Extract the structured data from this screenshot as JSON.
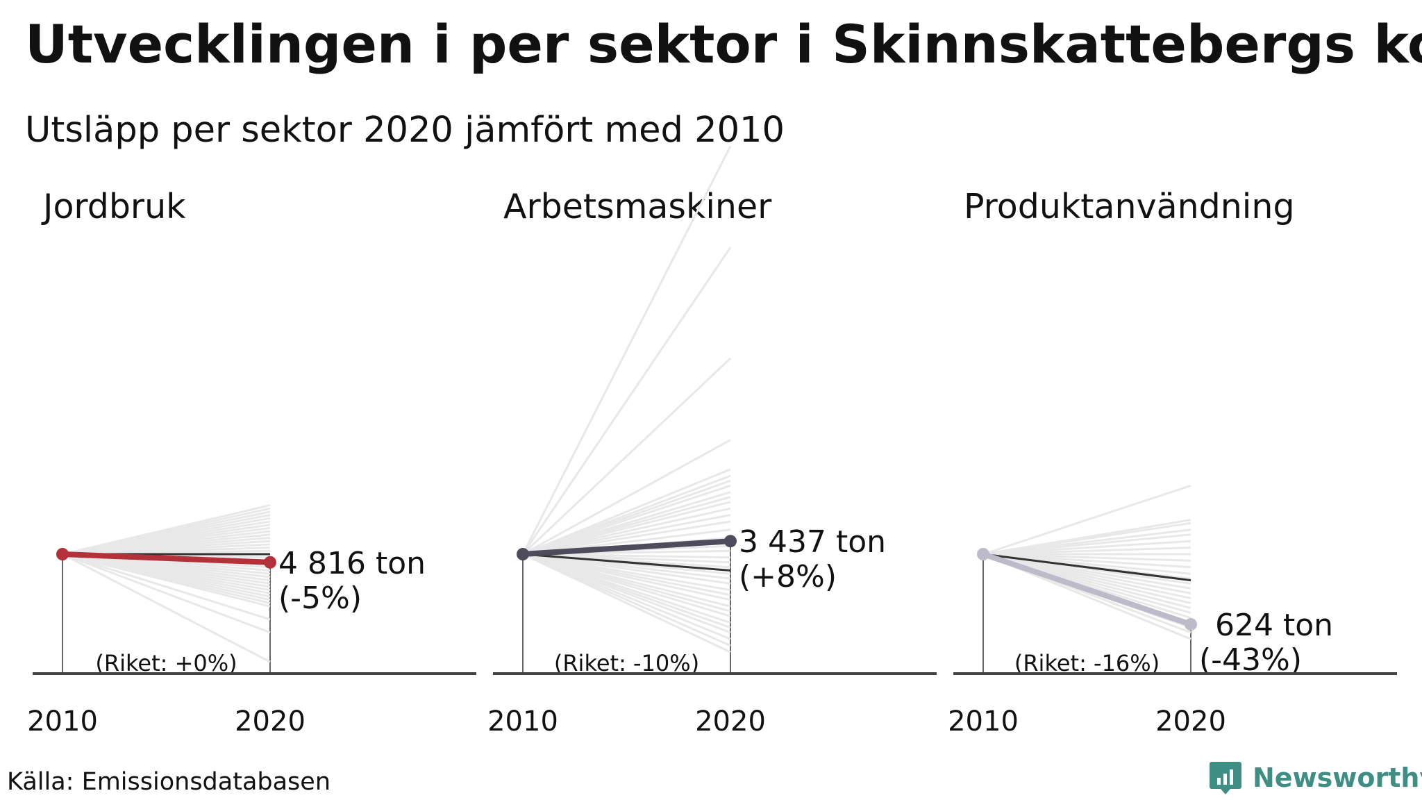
{
  "title": "Utvecklingen i per sektor i Skinnskattebergs kommun",
  "subtitle": "Utsläpp per sektor 2020 jämfört med 2010",
  "source": "Källa: Emissionsdatabasen",
  "brand": {
    "name": "Newsworthy",
    "color": "#3f8e84",
    "icon": "newsworthy-logo-icon"
  },
  "colors": {
    "background_lines": "#e8e8e8",
    "national_line": "#333333",
    "axis": "#333333",
    "baseline": "#444444"
  },
  "chart_data": [
    {
      "type": "line",
      "title": "Jordbruk",
      "x": [
        "2010",
        "2020"
      ],
      "series_color": "#b5313a",
      "municipality": {
        "value_2020": 4816,
        "change_pct": -5,
        "label_value": "4 816 ton",
        "label_change": "(-5%)"
      },
      "national": {
        "change_pct": 0,
        "label": "(Riket: +0%)"
      },
      "other_municipalities_change_pct": [
        30,
        28,
        26,
        24,
        22,
        20,
        18,
        16,
        14,
        12,
        10,
        8,
        6,
        4,
        2,
        -2,
        -4,
        -6,
        -8,
        -10,
        -12,
        -14,
        -16,
        -18,
        -20,
        -22,
        -24,
        -26,
        -28,
        -30,
        -32,
        -40,
        -48,
        -66
      ]
    },
    {
      "type": "line",
      "title": "Arbetsmaskiner",
      "x": [
        "2010",
        "2020"
      ],
      "series_color": "#4d4b5c",
      "municipality": {
        "value_2020": 3437,
        "change_pct": 8,
        "label_value": "3 437 ton",
        "label_change": "(+8%)"
      },
      "national": {
        "change_pct": -10,
        "label": "(Riket: -10%)"
      },
      "other_municipalities_change_pct": [
        250,
        188,
        120,
        70,
        52,
        48,
        45,
        42,
        38,
        35,
        32,
        28,
        24,
        20,
        15,
        10,
        5,
        2,
        -2,
        -5,
        -8,
        -12,
        -15,
        -18,
        -22,
        -25,
        -28,
        -32,
        -35,
        -38,
        -42,
        -45,
        -48,
        -52,
        -56,
        -60
      ]
    },
    {
      "type": "line",
      "title": "Produktanvändning",
      "x": [
        "2010",
        "2020"
      ],
      "series_color": "#bdbbc9",
      "municipality": {
        "value_2020": 624,
        "change_pct": -43,
        "label_value": "624 ton",
        "label_change": "(-43%)"
      },
      "national": {
        "change_pct": -16,
        "label": "(Riket: -16%)"
      },
      "other_municipalities_change_pct": [
        42,
        21,
        19,
        15,
        12,
        8,
        4,
        0,
        -4,
        -8,
        -12,
        -15,
        -18,
        -21,
        -24,
        -27,
        -30,
        -33,
        -36,
        -39,
        -42,
        -45,
        -48,
        -52
      ]
    }
  ]
}
